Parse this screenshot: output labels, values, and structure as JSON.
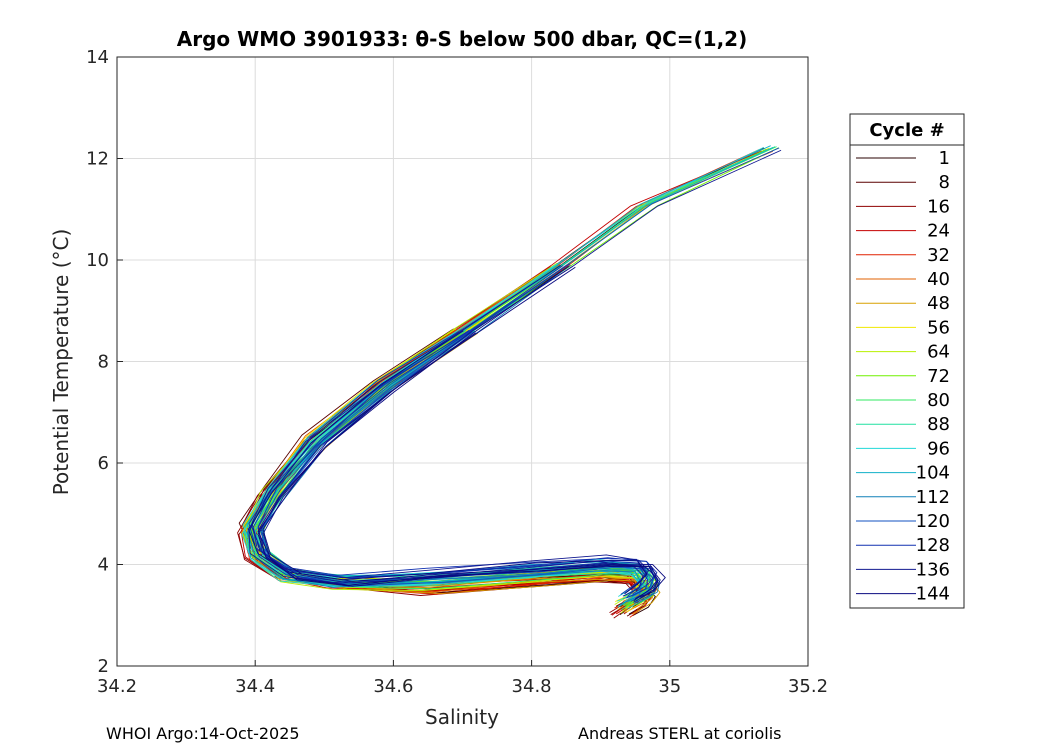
{
  "chart_data": {
    "type": "line",
    "title": "Argo WMO 3901933: θ-S below 500 dbar,  QC=(1,2)",
    "xlabel": "Salinity",
    "ylabel": "Potential Temperature (°C)",
    "xlim": [
      34.2,
      35.2
    ],
    "ylim": [
      2,
      14
    ],
    "xticks": [
      "34.2",
      "34.4",
      "34.6",
      "34.8",
      "35",
      "35.2"
    ],
    "yticks": [
      "2",
      "4",
      "6",
      "8",
      "10",
      "12",
      "14"
    ],
    "grid": true,
    "legend": {
      "title": "Cycle #",
      "placement": "right",
      "entries": [
        {
          "label": "1",
          "color": "#2a0000"
        },
        {
          "label": "8",
          "color": "#5a0000"
        },
        {
          "label": "16",
          "color": "#8f0000"
        },
        {
          "label": "24",
          "color": "#c40000"
        },
        {
          "label": "32",
          "color": "#e02000"
        },
        {
          "label": "40",
          "color": "#e06000"
        },
        {
          "label": "48",
          "color": "#d8a000"
        },
        {
          "label": "56",
          "color": "#f0e800"
        },
        {
          "label": "64",
          "color": "#b8f000"
        },
        {
          "label": "72",
          "color": "#70f000"
        },
        {
          "label": "80",
          "color": "#30e860"
        },
        {
          "label": "88",
          "color": "#20e0a0"
        },
        {
          "label": "96",
          "color": "#20d8d8"
        },
        {
          "label": "104",
          "color": "#10b0c8"
        },
        {
          "label": "112",
          "color": "#1080b8"
        },
        {
          "label": "120",
          "color": "#1050c0"
        },
        {
          "label": "128",
          "color": "#1030b0"
        },
        {
          "label": "136",
          "color": "#101890"
        },
        {
          "label": "144",
          "color": "#0a0a80"
        }
      ]
    },
    "series_shape": {
      "s": [
        35.14,
        34.96,
        34.84,
        34.7,
        34.58,
        34.48,
        34.42,
        34.39,
        34.4,
        34.44,
        34.52,
        34.65,
        34.8,
        34.9,
        34.95,
        34.965,
        34.955,
        34.93
      ],
      "t": [
        12.2,
        11.1,
        9.9,
        8.6,
        7.5,
        6.4,
        5.4,
        4.7,
        4.2,
        3.8,
        3.65,
        3.65,
        3.8,
        3.9,
        3.85,
        3.6,
        3.4,
        3.2
      ]
    }
  },
  "footer": {
    "left": "WHOI Argo:14-Oct-2025",
    "right": "Andreas STERL at coriolis"
  }
}
